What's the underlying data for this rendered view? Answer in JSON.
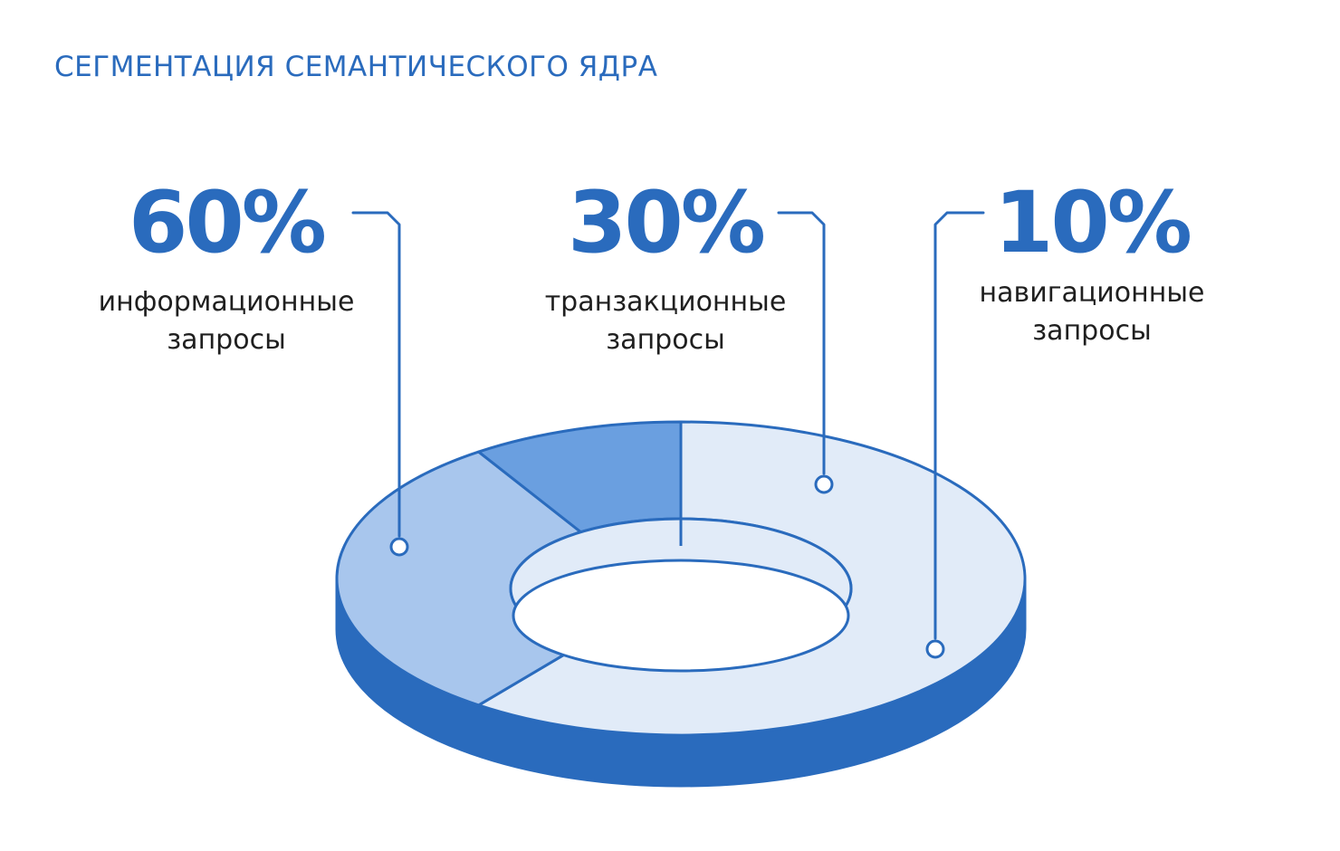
{
  "title": "СЕГМЕНТАЦИЯ СЕМАНТИЧЕСКОГО ЯДРА",
  "chart_data": {
    "type": "pie",
    "title": "СЕГМЕНТАЦИЯ СЕМАНТИЧЕСКОГО ЯДРА",
    "slices": [
      {
        "value": 60,
        "value_label": "60%",
        "label_line1": "информационные",
        "label_line2": "запросы",
        "color": "#e1ebf8"
      },
      {
        "value": 30,
        "value_label": "30%",
        "label_line1": "транзакционные",
        "label_line2": "запросы",
        "color": "#a8c6ed"
      },
      {
        "value": 10,
        "value_label": "10%",
        "label_line1": "навигационные",
        "label_line2": "запросы",
        "color": "#6a9fe0"
      }
    ],
    "colors": {
      "accent": "#2a6bbd",
      "side": "#2a6bbd"
    }
  }
}
